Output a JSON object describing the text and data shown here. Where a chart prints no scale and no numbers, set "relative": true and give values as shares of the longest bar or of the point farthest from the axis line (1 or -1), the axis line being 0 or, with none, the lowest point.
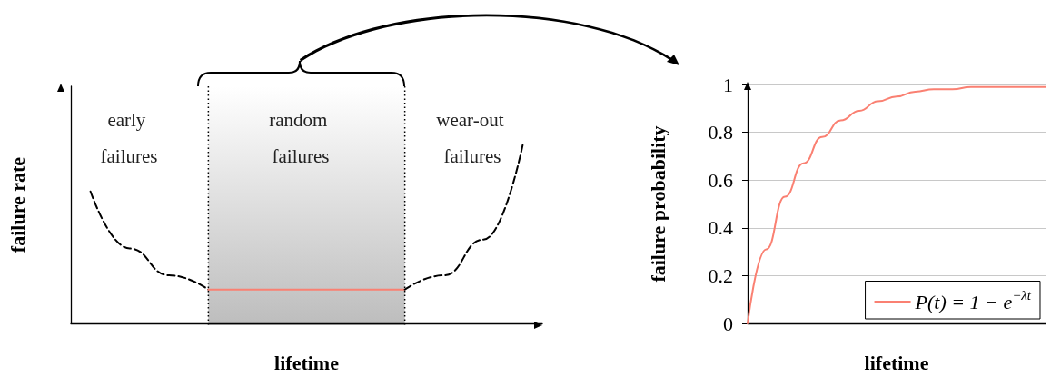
{
  "chart_data": [
    {
      "type": "line",
      "relative": true,
      "xlabel": "lifetime",
      "ylabel": "failure rate",
      "categories": [
        null,
        null,
        null,
        null,
        null,
        null,
        null,
        null,
        null,
        null,
        null,
        null
      ],
      "series": [
        {
          "color": "#000000",
          "line_style": "dashed",
          "values": [
            0.74,
            0.42,
            0.27,
            0.19,
            null,
            null,
            null,
            null,
            null,
            null,
            null,
            null
          ]
        },
        {
          "color": "#fa8072",
          "line_style": "solid",
          "values": [
            null,
            null,
            null,
            0.19,
            0.19,
            0.19,
            0.19,
            0.19,
            0.19,
            null,
            null,
            null
          ]
        },
        {
          "color": "#000000",
          "line_style": "dashed",
          "values": [
            null,
            null,
            null,
            null,
            null,
            null,
            null,
            null,
            0.19,
            0.27,
            0.47,
            1
          ]
        }
      ],
      "annotations": [
        "early failures",
        "random failures",
        "wear-out failures"
      ]
    },
    {
      "type": "line",
      "xlabel": "lifetime",
      "ylabel": "failure probability",
      "categories": [
        null,
        null,
        null,
        null,
        null,
        null,
        null,
        null,
        null,
        null,
        null,
        null,
        null,
        null,
        null,
        null,
        null
      ],
      "series": [
        {
          "name": "P(t) = 1 − e$^{−λt}$",
          "color": "#fa8072",
          "values": [
            0,
            0.31,
            0.53,
            0.67,
            0.78,
            0.85,
            0.89,
            0.93,
            0.95,
            0.97,
            0.98,
            0.98,
            0.99,
            0.99,
            0.99,
            0.99,
            0.99
          ]
        }
      ],
      "ylim": [
        0,
        1
      ],
      "yticks": [
        0,
        0.2,
        0.4,
        0.6,
        0.8,
        1
      ],
      "grid": "y",
      "legend": "bottom right"
    }
  ]
}
